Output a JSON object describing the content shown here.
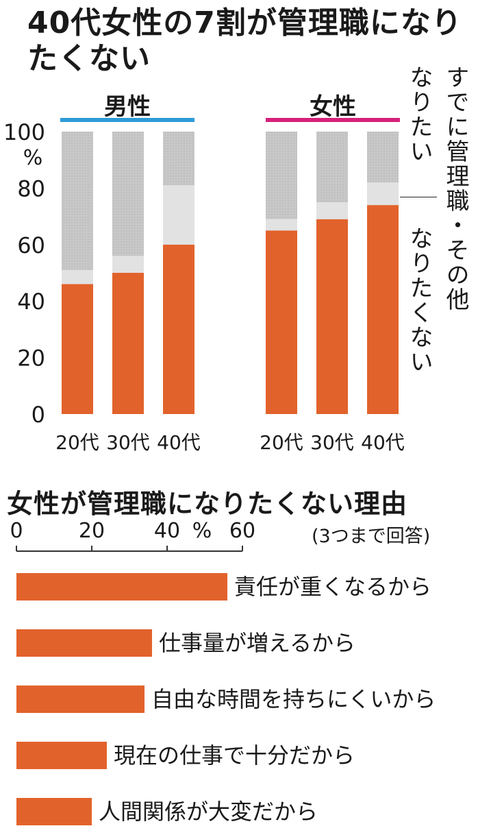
{
  "chart_data": [
    {
      "type": "bar",
      "stacked": true,
      "title": "40代女性の7割が管理職になりたくない",
      "ylabel": "%",
      "ylim": [
        0,
        100
      ],
      "yticks": [
        "100",
        "80",
        "60",
        "40",
        "20",
        "0"
      ],
      "groups": [
        {
          "name": "男性",
          "color": "#2e9bd6",
          "categories": [
            "20代",
            "30代",
            "40代"
          ],
          "なりたくない": [
            46,
            50,
            60
          ],
          "すでに管理職・その他": [
            5,
            6,
            21
          ],
          "なりたい": [
            49,
            44,
            19
          ]
        },
        {
          "name": "女性",
          "color": "#d6217a",
          "categories": [
            "20代",
            "30代",
            "40代"
          ],
          "なりたくない": [
            65,
            69,
            74
          ],
          "すでに管理職・その他": [
            4,
            6,
            8
          ],
          "なりたい": [
            31,
            25,
            18
          ]
        }
      ],
      "series_labels": {
        "want": "なりたい",
        "other": "すでに管理職・その他",
        "dont_want": "なりたくない"
      },
      "colors": {
        "dont_want": "#e2622b",
        "other": "#e2e2e2",
        "want": "#c4c4c4"
      }
    },
    {
      "type": "bar",
      "orientation": "horizontal",
      "title": "女性が管理職になりたくない理由",
      "note": "(3つまで回答)",
      "xlabel": "%",
      "xlim": [
        0,
        60
      ],
      "xticks": [
        "0",
        "20",
        "40",
        "60"
      ],
      "categories": [
        "責任が重くなるから",
        "仕事量が増えるから",
        "自由な時間を持ちにくいから",
        "現在の仕事で十分だから",
        "人間関係が大変だから"
      ],
      "values": [
        56,
        36,
        34,
        24,
        20
      ],
      "color": "#e2622b"
    }
  ]
}
